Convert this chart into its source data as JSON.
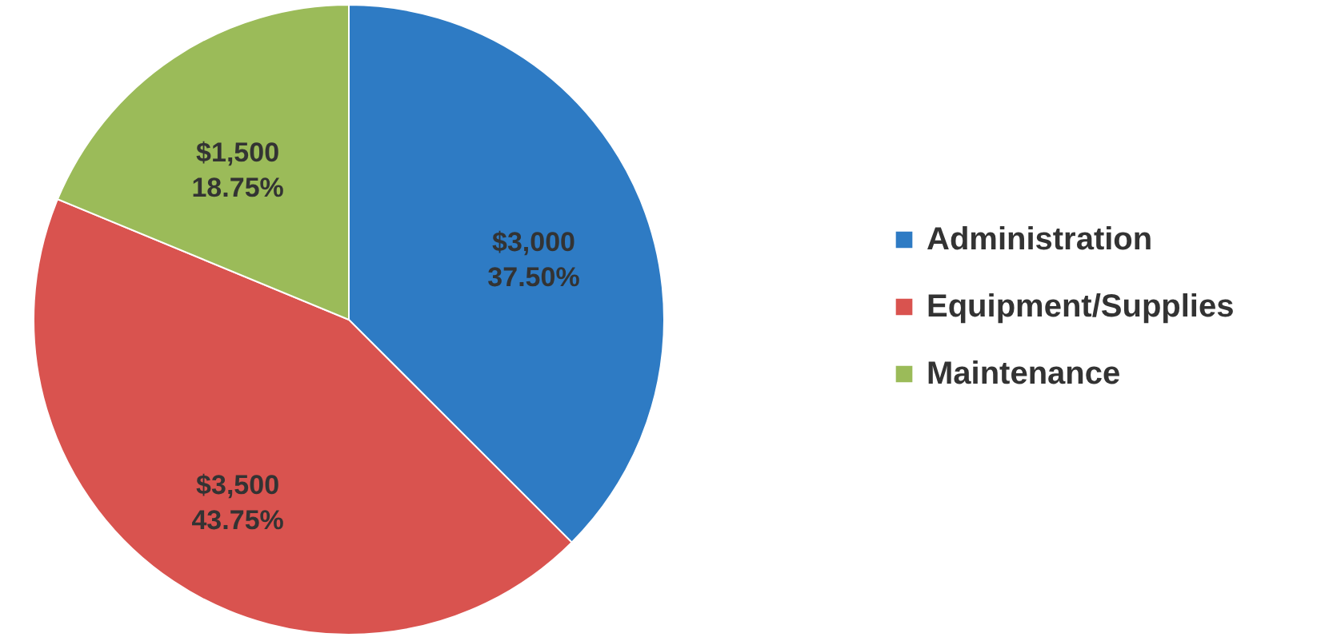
{
  "chart_data": {
    "type": "pie",
    "categories": [
      "Administration",
      "Equipment/Supplies",
      "Maintenance"
    ],
    "values": [
      3000,
      3500,
      1500
    ],
    "colors": [
      "#2e7bc4",
      "#d9534f",
      "#9bbb59"
    ],
    "value_labels": [
      "$3,000\n37.50%",
      "$3,500\n43.75%",
      "$1,500\n18.75%"
    ],
    "legend": "right"
  }
}
